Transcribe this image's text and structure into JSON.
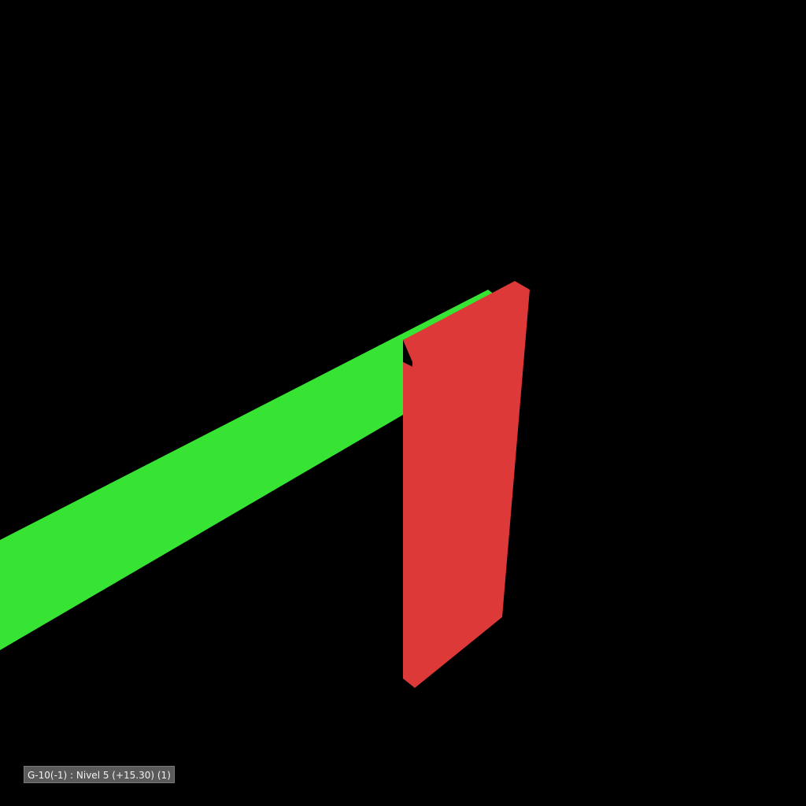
{
  "viewport": {
    "background": "#000000",
    "label_text": "G-10(-1) : Nivel 5 (+15.30) (1)"
  },
  "elements": {
    "beam": {
      "name": "green-beam",
      "color": "#37e333"
    },
    "column": {
      "name": "red-column",
      "color": "#de3939"
    }
  }
}
